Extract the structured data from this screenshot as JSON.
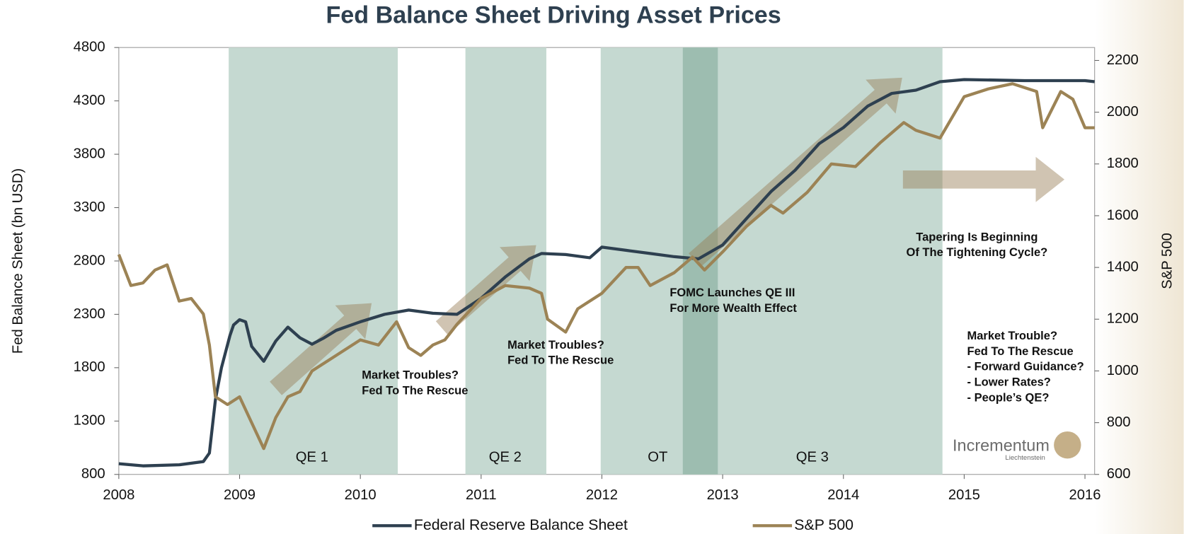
{
  "chart_data": {
    "type": "line",
    "title": "Fed Balance Sheet Driving Asset Prices",
    "y_label": "Fed Balance Sheet (bn USD)",
    "y2_label": "S&P 500",
    "xlim": [
      2008,
      2016.08
    ],
    "xticks": [
      2008,
      2009,
      2010,
      2011,
      2012,
      2013,
      2014,
      2015,
      2016
    ],
    "ylim": [
      800,
      4800
    ],
    "yticks": [
      800,
      1300,
      1800,
      2300,
      2800,
      3300,
      3800,
      4300,
      4800
    ],
    "y2lim": [
      600,
      2250
    ],
    "y2ticks": [
      600,
      800,
      1000,
      1200,
      1400,
      1600,
      1800,
      2000,
      2200
    ],
    "periods": [
      {
        "label": "QE 1",
        "start": 2008.91,
        "end": 2010.31,
        "color": "#c5d9d1"
      },
      {
        "label": "QE 2",
        "start": 2010.87,
        "end": 2011.54,
        "color": "#c5d9d1"
      },
      {
        "label": "OT",
        "start": 2011.99,
        "end": 2012.96,
        "color": "#c5d9d1"
      },
      {
        "label": "QE 3",
        "start": 2012.67,
        "end": 2014.82,
        "color": "#c5d9d1"
      }
    ],
    "overlap_color": "#9dbdb0",
    "series": [
      {
        "name": "Federal Reserve Balance Sheet",
        "color": "#2e4050",
        "axis": "y",
        "x": [
          2008,
          2008.2,
          2008.5,
          2008.7,
          2008.75,
          2008.8,
          2008.85,
          2008.92,
          2008.95,
          2009,
          2009.05,
          2009.1,
          2009.2,
          2009.3,
          2009.4,
          2009.5,
          2009.6,
          2009.7,
          2009.8,
          2010,
          2010.2,
          2010.4,
          2010.6,
          2010.8,
          2011,
          2011.2,
          2011.4,
          2011.5,
          2011.7,
          2011.9,
          2012,
          2012.2,
          2012.4,
          2012.6,
          2012.8,
          2013,
          2013.2,
          2013.4,
          2013.6,
          2013.8,
          2014,
          2014.2,
          2014.4,
          2014.6,
          2014.8,
          2015,
          2015.5,
          2016,
          2016.08
        ],
        "values": [
          900,
          880,
          890,
          920,
          1000,
          1500,
          1800,
          2100,
          2200,
          2250,
          2230,
          2000,
          1860,
          2050,
          2180,
          2080,
          2020,
          2080,
          2150,
          2230,
          2300,
          2340,
          2310,
          2300,
          2450,
          2650,
          2820,
          2870,
          2860,
          2830,
          2930,
          2900,
          2870,
          2840,
          2820,
          2950,
          3200,
          3450,
          3650,
          3900,
          4050,
          4250,
          4370,
          4400,
          4480,
          4500,
          4490,
          4490,
          4480
        ]
      },
      {
        "name": "S&P 500",
        "color": "#9c8355",
        "axis": "y2",
        "x": [
          2008,
          2008.1,
          2008.2,
          2008.3,
          2008.4,
          2008.5,
          2008.6,
          2008.7,
          2008.75,
          2008.8,
          2008.9,
          2009,
          2009.1,
          2009.2,
          2009.3,
          2009.4,
          2009.5,
          2009.6,
          2009.8,
          2010,
          2010.15,
          2010.3,
          2010.4,
          2010.5,
          2010.6,
          2010.7,
          2010.8,
          2011,
          2011.2,
          2011.4,
          2011.5,
          2011.55,
          2011.7,
          2011.8,
          2012,
          2012.2,
          2012.3,
          2012.4,
          2012.6,
          2012.75,
          2012.85,
          2013,
          2013.2,
          2013.4,
          2013.5,
          2013.7,
          2013.9,
          2014.1,
          2014.3,
          2014.5,
          2014.6,
          2014.8,
          2015,
          2015.2,
          2015.4,
          2015.6,
          2015.65,
          2015.8,
          2015.9,
          2016,
          2016.08
        ],
        "values": [
          1450,
          1330,
          1340,
          1390,
          1410,
          1270,
          1280,
          1220,
          1100,
          900,
          870,
          900,
          800,
          700,
          820,
          900,
          920,
          1000,
          1060,
          1120,
          1100,
          1190,
          1090,
          1060,
          1100,
          1120,
          1180,
          1280,
          1330,
          1320,
          1300,
          1200,
          1150,
          1240,
          1300,
          1400,
          1400,
          1330,
          1380,
          1440,
          1390,
          1460,
          1560,
          1640,
          1610,
          1690,
          1800,
          1790,
          1880,
          1960,
          1930,
          1900,
          2060,
          2090,
          2110,
          2080,
          1940,
          2080,
          2050,
          1940,
          1940
        ]
      }
    ],
    "annotations": [
      [
        "Market Troubles?",
        "Fed To The Rescue"
      ],
      [
        "Market Troubles?",
        "Fed To The Rescue"
      ],
      [
        "FOMC Launches QE III",
        "For More Wealth Effect"
      ],
      [
        "Tapering Is Beginning",
        "Of The Tightening Cycle?"
      ],
      [
        "Market Trouble?",
        "Fed To The Rescue",
        "- Forward Guidance?",
        "- Lower Rates?",
        "- People’s QE?"
      ]
    ],
    "logo": {
      "name": "Incrementum",
      "sub": "Liechtenstein"
    }
  }
}
